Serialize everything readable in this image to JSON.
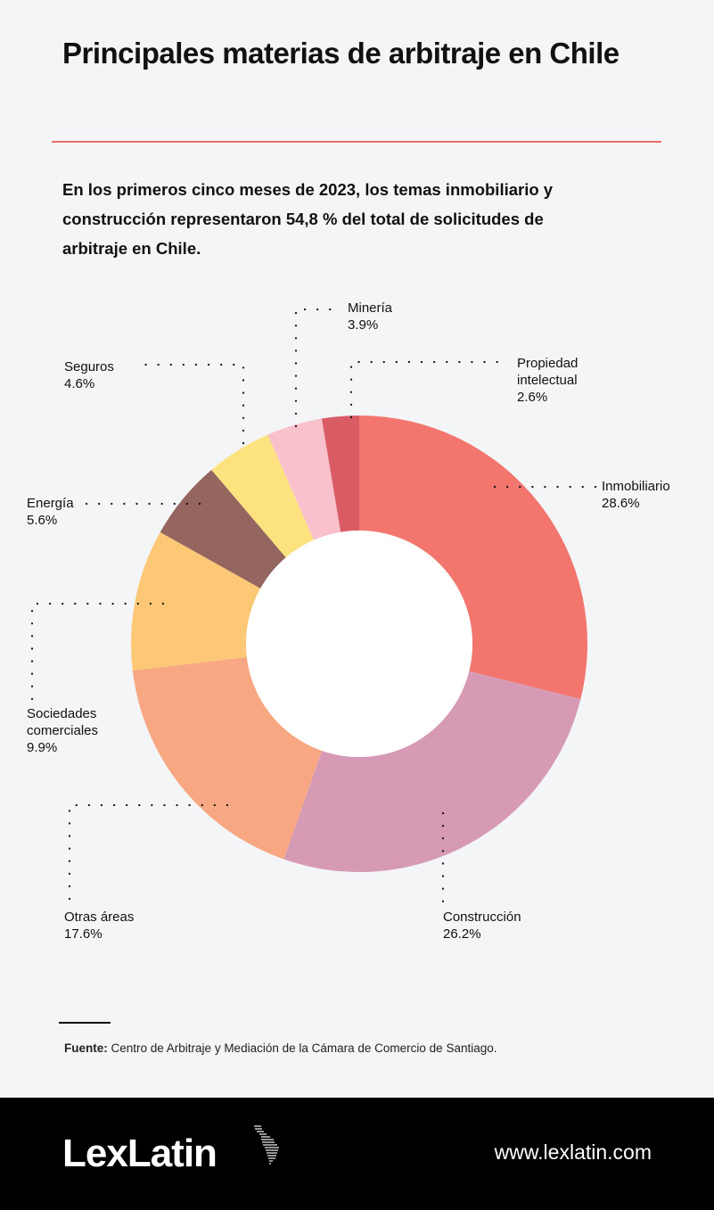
{
  "header": {
    "title": "Principales materias de arbitraje en Chile",
    "subtitle": "En los primeros cinco meses de 2023, los temas inmobiliario y construcción representaron 54,8 % del total de solicitudes de arbitraje en Chile."
  },
  "chart_data": {
    "type": "pie",
    "donut": true,
    "slices": [
      {
        "name": "Inmobiliario",
        "value": 28.6,
        "label": "28.6%",
        "color": "#f2756e"
      },
      {
        "name": "Construcción",
        "value": 26.2,
        "label": "26.2%",
        "color": "#d79ab5"
      },
      {
        "name": "Otras áreas",
        "value": 17.6,
        "label": "17.6%",
        "color": "#f8a783"
      },
      {
        "name": "Sociedades comerciales",
        "value": 9.9,
        "label": "9.9%",
        "color": "#fcc876"
      },
      {
        "name": "Energía",
        "value": 5.6,
        "label": "5.6%",
        "color": "#956560"
      },
      {
        "name": "Seguros",
        "value": 4.6,
        "label": "4.6%",
        "color": "#fde280"
      },
      {
        "name": "Minería",
        "value": 3.9,
        "label": "3.9%",
        "color": "#f8c1cb"
      },
      {
        "name": "Propiedad intelectual",
        "value": 2.6,
        "label": "2.6%",
        "color": "#d95c65"
      }
    ]
  },
  "source": {
    "label": "Fuente:",
    "text": " Centro de Arbitraje y Mediación de la Cámara de Comercio de Santiago."
  },
  "footer": {
    "logo": "LexLatin",
    "url": "www.lexlatin.com"
  }
}
